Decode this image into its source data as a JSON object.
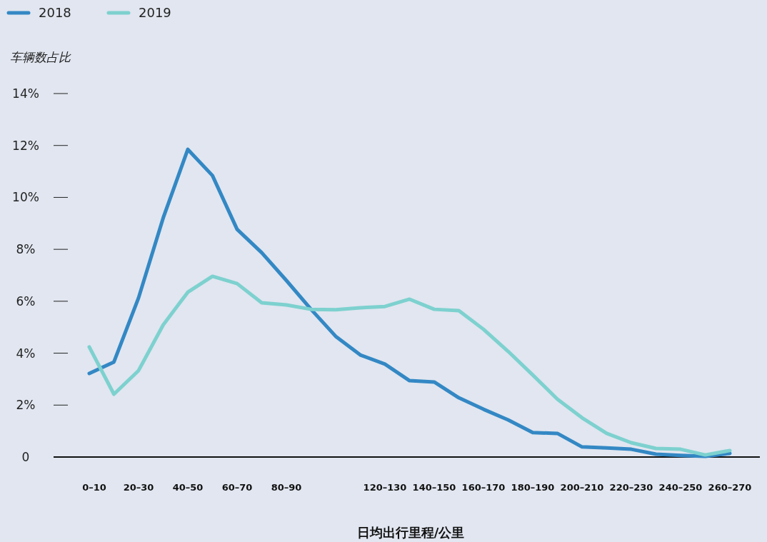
{
  "chart_data": {
    "type": "line",
    "ylabel": "车辆数占比",
    "xlabel": "日均出行里程/公里",
    "categories": [
      "0–10",
      null,
      "20–30",
      null,
      "40–50",
      null,
      "60–70",
      null,
      "80–90",
      null,
      null,
      null,
      "120–130",
      null,
      "140–150",
      null,
      "160–170",
      null,
      "180–190",
      null,
      "200–210",
      null,
      "220–230",
      null,
      "240–250",
      null,
      "260–270"
    ],
    "series": [
      {
        "name": "2018",
        "color": "#3388c4",
        "values": [
          3.22,
          3.66,
          6.13,
          9.21,
          11.85,
          10.84,
          8.77,
          7.87,
          6.8,
          5.69,
          4.65,
          3.93,
          3.58,
          2.94,
          2.89,
          2.28,
          1.84,
          1.43,
          0.94,
          0.91,
          0.39,
          0.35,
          0.3,
          0.11,
          0.06,
          0.03,
          0.14
        ]
      },
      {
        "name": "2019",
        "color": "#7dd1cf",
        "values": [
          4.24,
          2.42,
          3.33,
          5.09,
          6.35,
          6.96,
          6.68,
          5.94,
          5.86,
          5.69,
          5.67,
          5.75,
          5.8,
          6.08,
          5.69,
          5.64,
          4.92,
          4.07,
          3.16,
          2.23,
          1.51,
          0.91,
          0.55,
          0.33,
          0.3,
          0.08,
          0.25
        ]
      }
    ],
    "ylim": [
      0,
      14
    ],
    "yticks": [
      {
        "value": 0,
        "label": "0"
      },
      {
        "value": 2,
        "label": "2%"
      },
      {
        "value": 4,
        "label": "4%"
      },
      {
        "value": 6,
        "label": "6%"
      },
      {
        "value": 8,
        "label": "8%"
      },
      {
        "value": 10,
        "label": "10%"
      },
      {
        "value": 12,
        "label": "12%"
      },
      {
        "value": 14,
        "label": "14%"
      }
    ],
    "grid": false,
    "legend": "top left",
    "line_style": "solid",
    "marker": "none"
  }
}
